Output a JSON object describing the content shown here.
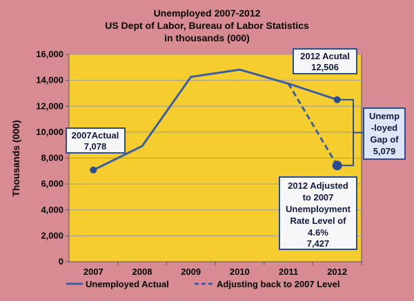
{
  "chart_data": {
    "type": "line",
    "title_lines": [
      "Unemployed 2007-2012",
      "US Dept of Labor, Bureau of Labor Statistics",
      "in thousands (000)"
    ],
    "ylabel": "Thousands (000)",
    "xlabel": "",
    "categories": [
      "2007",
      "2008",
      "2009",
      "2010",
      "2011",
      "2012"
    ],
    "ylim": [
      0,
      16000
    ],
    "yticks": [
      0,
      2000,
      4000,
      6000,
      8000,
      10000,
      12000,
      14000,
      16000
    ],
    "ytick_labels": [
      "0",
      "2,000",
      "4,000",
      "6,000",
      "8,000",
      "10,000",
      "12,000",
      "14,000",
      "16,000"
    ],
    "grid": true,
    "legend_position": "bottom",
    "series": [
      {
        "name": "Unemployed Actual",
        "style": "solid",
        "x": [
          "2007",
          "2008",
          "2009",
          "2010",
          "2011",
          "2012"
        ],
        "values": [
          7078,
          8924,
          14265,
          14825,
          13747,
          12506
        ]
      },
      {
        "name": "Adjusting back to 2007 Level",
        "style": "dashed",
        "x": [
          "2011",
          "2012"
        ],
        "values": [
          13747,
          7427
        ]
      }
    ],
    "annotations": [
      {
        "id": "a2007",
        "lines": [
          "2007Actual",
          "7,078"
        ],
        "target": "2007"
      },
      {
        "id": "a2012",
        "lines": [
          "2012 Acutal",
          "12,506"
        ],
        "target": "2012"
      },
      {
        "id": "gap",
        "lines": [
          "Unemp",
          "-loyed",
          "Gap of",
          "5,079"
        ],
        "target": "2012"
      },
      {
        "id": "adj",
        "lines": [
          "2012 Adjusted",
          "to 2007",
          "Unemployment",
          "Rate Level of",
          "4.6%",
          "7,427"
        ],
        "target": "2012"
      }
    ]
  },
  "colors": {
    "background": "#d98b93",
    "plot_area": "#f6cd2f",
    "line": "#3a5ea4",
    "marker": "#2a4d8f",
    "callout_fill": "#f7f7fa",
    "gap_callout_fill": "#dde6f6"
  }
}
